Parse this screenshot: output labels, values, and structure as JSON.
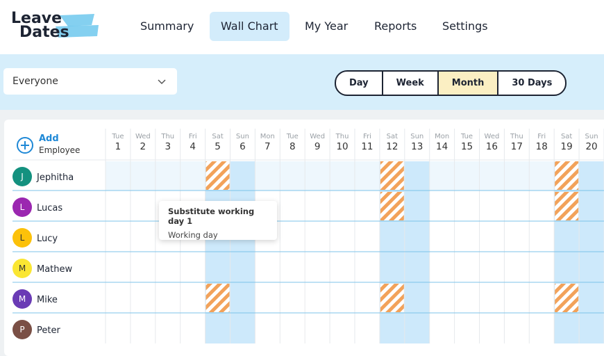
{
  "header": {
    "logo": [
      "Leave",
      "Dates"
    ],
    "nav": [
      "Summary",
      "Wall Chart",
      "My Year",
      "Reports",
      "Settings"
    ],
    "active_nav": 1
  },
  "toolbar": {
    "filter": "Everyone",
    "views": [
      "Day",
      "Week",
      "Month",
      "30 Days"
    ],
    "active_view": 2
  },
  "grid": {
    "add_button": [
      "Add",
      "Employee"
    ],
    "days": [
      {
        "weekday": "Tue",
        "date": "1"
      },
      {
        "weekday": "Wed",
        "date": "2"
      },
      {
        "weekday": "Thu",
        "date": "3"
      },
      {
        "weekday": "Fri",
        "date": "4"
      },
      {
        "weekday": "Sat",
        "date": "5"
      },
      {
        "weekday": "Sun",
        "date": "6"
      },
      {
        "weekday": "Mon",
        "date": "7"
      },
      {
        "weekday": "Tue",
        "date": "8"
      },
      {
        "weekday": "Wed",
        "date": "9"
      },
      {
        "weekday": "Thu",
        "date": "10"
      },
      {
        "weekday": "Fri",
        "date": "11"
      },
      {
        "weekday": "Sat",
        "date": "12"
      },
      {
        "weekday": "Sun",
        "date": "13"
      },
      {
        "weekday": "Mon",
        "date": "14"
      },
      {
        "weekday": "Tue",
        "date": "15"
      },
      {
        "weekday": "Wed",
        "date": "16"
      },
      {
        "weekday": "Thu",
        "date": "17"
      },
      {
        "weekday": "Fri",
        "date": "18"
      },
      {
        "weekday": "Sat",
        "date": "19"
      },
      {
        "weekday": "Sun",
        "date": "20"
      }
    ],
    "employees": [
      {
        "initial": "J",
        "name": "Jephitha",
        "color": "#14917f"
      },
      {
        "initial": "L",
        "name": "Lucas",
        "color": "#9b27b0"
      },
      {
        "initial": "L",
        "name": "Lucy",
        "color": "#fcc10a"
      },
      {
        "initial": "M",
        "name": "Mathew",
        "color": "#fae633"
      },
      {
        "initial": "M",
        "name": "Mike",
        "color": "#6a3bb5"
      },
      {
        "initial": "P",
        "name": "Peter",
        "color": "#7a4f45"
      }
    ]
  },
  "tooltip": {
    "title": "Substitute working day 1",
    "text": "Working day"
  }
}
